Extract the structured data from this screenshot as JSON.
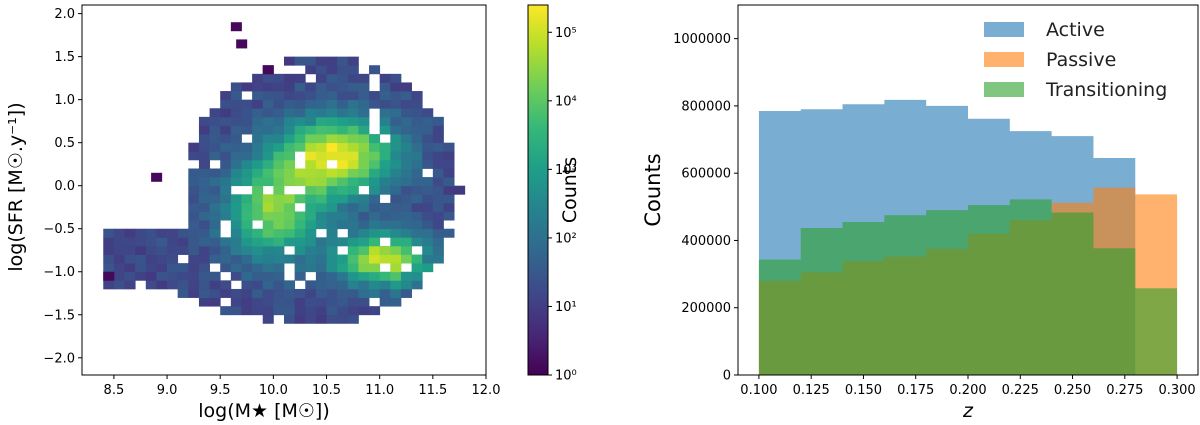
{
  "chart_data": [
    {
      "type": "heatmap",
      "title": "",
      "xlabel": "log(M★ [M☉])",
      "ylabel": "log(SFR [M☉.y⁻¹])",
      "xlim": [
        8.2,
        12.0
      ],
      "ylim": [
        -2.2,
        2.1
      ],
      "xticks": [
        8.5,
        9.0,
        9.5,
        10.0,
        10.5,
        11.0,
        11.5,
        12.0
      ],
      "xtick_labels": [
        "8.5",
        "9.0",
        "9.5",
        "10.0",
        "10.5",
        "11.0",
        "11.5",
        "12.0"
      ],
      "yticks": [
        -2.0,
        -1.5,
        -1.0,
        -0.5,
        0.0,
        0.5,
        1.0,
        1.5,
        2.0
      ],
      "ytick_labels": [
        "−2.0",
        "−1.5",
        "−1.0",
        "−0.5",
        "0.0",
        "0.5",
        "1.0",
        "1.5",
        "2.0"
      ],
      "bin_width_x": 0.1,
      "bin_width_y": 0.1,
      "colormap": "viridis",
      "color_scale": "log",
      "colorbar_label": "Counts",
      "colorbar_range": [
        1,
        250000
      ],
      "colorbar_ticks": [
        1,
        10,
        100,
        1000,
        10000,
        100000
      ],
      "colorbar_tick_labels": [
        "10⁰",
        "10¹",
        "10²",
        "10³",
        "10⁴",
        "10⁵"
      ],
      "colorbar_colors": [
        "#440154",
        "#482878",
        "#3e4989",
        "#31688e",
        "#26828e",
        "#1f9e89",
        "#35b779",
        "#6ece58",
        "#b5de2b",
        "#fde725"
      ],
      "density_peaks": [
        {
          "x": 10.6,
          "y": 0.35,
          "log_counts": 5.3
        },
        {
          "x": 11.05,
          "y": -0.85,
          "log_counts": 5.25
        },
        {
          "x": 10.0,
          "y": -0.3,
          "log_counts": 5.0
        }
      ],
      "outlier_bins": [
        {
          "x": 9.65,
          "y": 1.85
        },
        {
          "x": 9.7,
          "y": 1.65
        },
        {
          "x": 8.9,
          "y": 0.1
        },
        {
          "x": 8.45,
          "y": -1.05
        },
        {
          "x": 9.95,
          "y": 1.35
        }
      ]
    },
    {
      "type": "bar",
      "histtype": "stepfilled",
      "title": "",
      "xlabel": "z",
      "ylabel": "Counts",
      "xlim": [
        0.09,
        0.31
      ],
      "ylim": [
        0,
        1100000
      ],
      "xticks": [
        0.1,
        0.125,
        0.15,
        0.175,
        0.2,
        0.225,
        0.25,
        0.275,
        0.3
      ],
      "xtick_labels": [
        "0.100",
        "0.125",
        "0.150",
        "0.175",
        "0.200",
        "0.225",
        "0.250",
        "0.275",
        "0.300"
      ],
      "yticks": [
        0,
        200000,
        400000,
        600000,
        800000,
        1000000
      ],
      "ytick_labels": [
        "0",
        "200000",
        "400000",
        "600000",
        "800000",
        "1000000"
      ],
      "bin_edges": [
        0.1,
        0.12,
        0.14,
        0.16,
        0.18,
        0.2,
        0.22,
        0.24,
        0.26,
        0.28,
        0.3
      ],
      "legend_position": "top-right",
      "series": [
        {
          "name": "Active",
          "color": "#1f77b4",
          "alpha": 0.6,
          "values": [
            785000,
            790000,
            805000,
            818000,
            800000,
            762000,
            725000,
            710000,
            645000,
            0
          ]
        },
        {
          "name": "Passive",
          "color": "#ff7f0e",
          "alpha": 0.6,
          "values": [
            280000,
            305000,
            338000,
            352000,
            375000,
            420000,
            460000,
            512000,
            557000,
            537000
          ]
        },
        {
          "name": "Transitioning",
          "color": "#2ca02c",
          "alpha": 0.6,
          "values": [
            343000,
            437000,
            455000,
            475000,
            490000,
            505000,
            522000,
            483000,
            377000,
            258000
          ]
        }
      ]
    }
  ]
}
